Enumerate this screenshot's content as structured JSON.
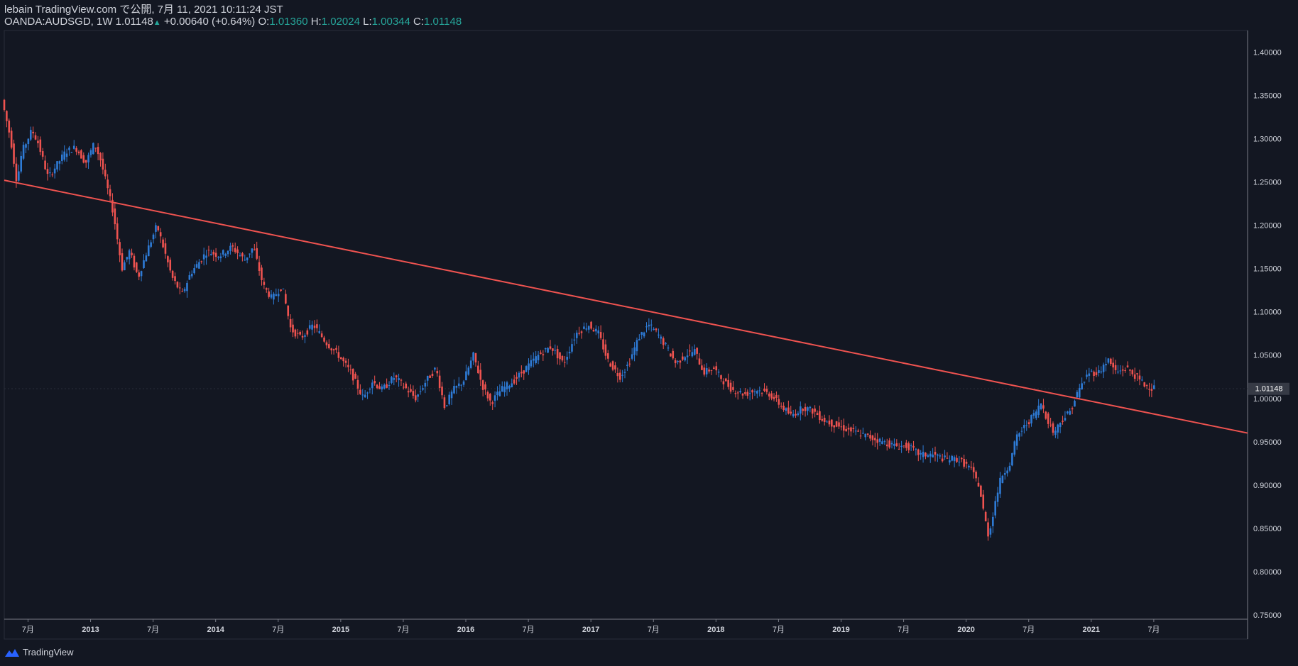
{
  "header": {
    "published": "lebain TradingView.com で公開, 7月 11, 2021 10:11:24 JST",
    "symbol_line": "OANDA:AUDSGD, 1W 1.01148",
    "change": "+0.00640 (+0.64%)",
    "o_label": "O:",
    "o_value": "1.01360",
    "h_label": "H:",
    "h_value": "1.02024",
    "l_label": "L:",
    "l_value": "1.00344",
    "c_label": "C:",
    "c_value": "1.01148"
  },
  "footer": {
    "brand": "TradingView"
  },
  "colors": {
    "background": "#131722",
    "up": "#2e7bd6",
    "down": "#ef5350",
    "trendline": "#ef5350",
    "grid_border": "#787b86"
  },
  "chart_data": {
    "type": "candlestick",
    "symbol": "OANDA:AUDSGD",
    "interval": "1W",
    "ylim": [
      0.745,
      1.425
    ],
    "yticks": [
      "1.40000",
      "1.35000",
      "1.30000",
      "1.25000",
      "1.20000",
      "1.15000",
      "1.10000",
      "1.05000",
      "1.00000",
      "0.95000",
      "0.90000",
      "0.85000",
      "0.80000",
      "0.75000"
    ],
    "last_price_label": "1.01148",
    "xticks": [
      {
        "label": "7月",
        "t": 2012.5,
        "year": false
      },
      {
        "label": "2013",
        "t": 2013.0,
        "year": true
      },
      {
        "label": "7月",
        "t": 2013.5,
        "year": false
      },
      {
        "label": "2014",
        "t": 2014.0,
        "year": true
      },
      {
        "label": "7月",
        "t": 2014.5,
        "year": false
      },
      {
        "label": "2015",
        "t": 2015.0,
        "year": true
      },
      {
        "label": "7月",
        "t": 2015.5,
        "year": false
      },
      {
        "label": "2016",
        "t": 2016.0,
        "year": true
      },
      {
        "label": "7月",
        "t": 2016.5,
        "year": false
      },
      {
        "label": "2017",
        "t": 2017.0,
        "year": true
      },
      {
        "label": "7月",
        "t": 2017.5,
        "year": false
      },
      {
        "label": "2018",
        "t": 2018.0,
        "year": true
      },
      {
        "label": "7月",
        "t": 2018.5,
        "year": false
      },
      {
        "label": "2019",
        "t": 2019.0,
        "year": true
      },
      {
        "label": "7月",
        "t": 2019.5,
        "year": false
      },
      {
        "label": "2020",
        "t": 2020.0,
        "year": true
      },
      {
        "label": "7月",
        "t": 2020.5,
        "year": false
      },
      {
        "label": "2021",
        "t": 2021.0,
        "year": true
      },
      {
        "label": "7月",
        "t": 2021.5,
        "year": false
      }
    ],
    "xlim": [
      2012.31,
      2022.25
    ],
    "price_path": [
      [
        2012.31,
        1.345
      ],
      [
        2012.38,
        1.3
      ],
      [
        2012.43,
        1.25
      ],
      [
        2012.47,
        1.285
      ],
      [
        2012.55,
        1.31
      ],
      [
        2012.6,
        1.295
      ],
      [
        2012.68,
        1.255
      ],
      [
        2012.75,
        1.27
      ],
      [
        2012.82,
        1.285
      ],
      [
        2012.9,
        1.29
      ],
      [
        2012.98,
        1.272
      ],
      [
        2013.05,
        1.295
      ],
      [
        2013.1,
        1.275
      ],
      [
        2013.2,
        1.215
      ],
      [
        2013.27,
        1.15
      ],
      [
        2013.33,
        1.17
      ],
      [
        2013.4,
        1.14
      ],
      [
        2013.47,
        1.17
      ],
      [
        2013.55,
        1.2
      ],
      [
        2013.62,
        1.165
      ],
      [
        2013.67,
        1.14
      ],
      [
        2013.75,
        1.12
      ],
      [
        2013.82,
        1.145
      ],
      [
        2013.9,
        1.16
      ],
      [
        2013.95,
        1.17
      ],
      [
        2014.05,
        1.165
      ],
      [
        2014.15,
        1.175
      ],
      [
        2014.25,
        1.16
      ],
      [
        2014.32,
        1.175
      ],
      [
        2014.4,
        1.13
      ],
      [
        2014.47,
        1.115
      ],
      [
        2014.55,
        1.13
      ],
      [
        2014.62,
        1.08
      ],
      [
        2014.7,
        1.07
      ],
      [
        2014.8,
        1.085
      ],
      [
        2014.9,
        1.065
      ],
      [
        2015.0,
        1.05
      ],
      [
        2015.1,
        1.03
      ],
      [
        2015.2,
        1.0
      ],
      [
        2015.27,
        1.02
      ],
      [
        2015.35,
        1.01
      ],
      [
        2015.45,
        1.025
      ],
      [
        2015.55,
        1.01
      ],
      [
        2015.62,
        1.0
      ],
      [
        2015.7,
        1.02
      ],
      [
        2015.78,
        1.035
      ],
      [
        2015.85,
        0.99
      ],
      [
        2015.92,
        1.01
      ],
      [
        2016.0,
        1.02
      ],
      [
        2016.08,
        1.05
      ],
      [
        2016.15,
        1.015
      ],
      [
        2016.22,
        0.995
      ],
      [
        2016.3,
        1.01
      ],
      [
        2016.4,
        1.02
      ],
      [
        2016.5,
        1.035
      ],
      [
        2016.6,
        1.05
      ],
      [
        2016.7,
        1.06
      ],
      [
        2016.8,
        1.04
      ],
      [
        2016.9,
        1.075
      ],
      [
        2017.0,
        1.085
      ],
      [
        2017.08,
        1.075
      ],
      [
        2017.15,
        1.045
      ],
      [
        2017.25,
        1.025
      ],
      [
        2017.32,
        1.04
      ],
      [
        2017.4,
        1.07
      ],
      [
        2017.48,
        1.085
      ],
      [
        2017.55,
        1.075
      ],
      [
        2017.62,
        1.06
      ],
      [
        2017.7,
        1.04
      ],
      [
        2017.77,
        1.05
      ],
      [
        2017.85,
        1.055
      ],
      [
        2017.92,
        1.03
      ],
      [
        2018.0,
        1.035
      ],
      [
        2018.08,
        1.02
      ],
      [
        2018.15,
        1.01
      ],
      [
        2018.25,
        1.005
      ],
      [
        2018.35,
        1.01
      ],
      [
        2018.45,
        1.005
      ],
      [
        2018.55,
        0.99
      ],
      [
        2018.62,
        0.98
      ],
      [
        2018.72,
        0.99
      ],
      [
        2018.8,
        0.985
      ],
      [
        2018.88,
        0.975
      ],
      [
        2018.96,
        0.97
      ],
      [
        2019.05,
        0.965
      ],
      [
        2019.15,
        0.96
      ],
      [
        2019.25,
        0.955
      ],
      [
        2019.35,
        0.95
      ],
      [
        2019.45,
        0.945
      ],
      [
        2019.55,
        0.945
      ],
      [
        2019.65,
        0.935
      ],
      [
        2019.75,
        0.935
      ],
      [
        2019.85,
        0.93
      ],
      [
        2019.95,
        0.93
      ],
      [
        2020.05,
        0.92
      ],
      [
        2020.12,
        0.9
      ],
      [
        2020.17,
        0.86
      ],
      [
        2020.2,
        0.84
      ],
      [
        2020.25,
        0.88
      ],
      [
        2020.3,
        0.91
      ],
      [
        2020.37,
        0.925
      ],
      [
        2020.42,
        0.955
      ],
      [
        2020.5,
        0.97
      ],
      [
        2020.58,
        0.985
      ],
      [
        2020.62,
        0.995
      ],
      [
        2020.67,
        0.975
      ],
      [
        2020.72,
        0.96
      ],
      [
        2020.78,
        0.975
      ],
      [
        2020.85,
        0.985
      ],
      [
        2020.92,
        1.01
      ],
      [
        2021.0,
        1.03
      ],
      [
        2021.08,
        1.03
      ],
      [
        2021.15,
        1.045
      ],
      [
        2021.22,
        1.03
      ],
      [
        2021.3,
        1.035
      ],
      [
        2021.38,
        1.025
      ],
      [
        2021.45,
        1.015
      ],
      [
        2021.52,
        1.012
      ]
    ],
    "trendline": {
      "from": [
        2012.31,
        1.252
      ],
      "to": [
        2022.25,
        0.96
      ]
    }
  }
}
